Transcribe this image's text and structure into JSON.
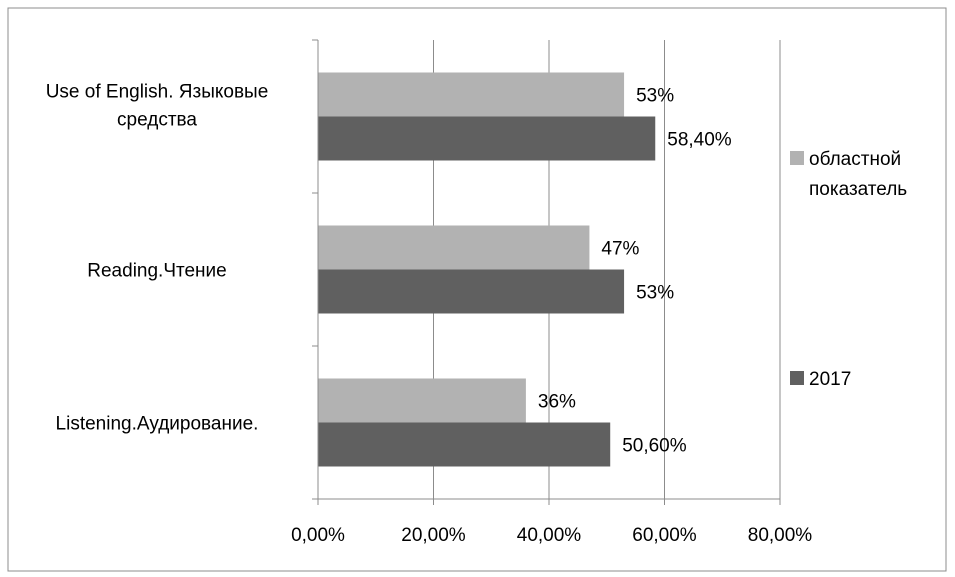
{
  "chart_data": {
    "type": "bar",
    "orientation": "horizontal",
    "categories": [
      "Use of English. Языковые средства",
      "Reading.Чтение",
      "Listening.Аудирование."
    ],
    "category_lines": [
      [
        "Use of English. Языковые",
        "средства"
      ],
      [
        "Reading.Чтение"
      ],
      [
        "Listening.Аудирование."
      ]
    ],
    "series": [
      {
        "name": "областной показатель",
        "legend_lines": [
          "областной",
          "показатель"
        ],
        "values": [
          53,
          47,
          36
        ],
        "labels": [
          "53%",
          "47%",
          "36%"
        ],
        "color": "#b2b2b2"
      },
      {
        "name": "2017",
        "legend_lines": [
          "2017"
        ],
        "values": [
          58.4,
          53,
          50.6
        ],
        "labels": [
          "58,40%",
          "53%",
          "50,60%"
        ],
        "color": "#606060"
      }
    ],
    "xlim": [
      0,
      80
    ],
    "xticks": [
      0,
      20,
      40,
      60,
      80
    ],
    "xtick_labels": [
      "0,00%",
      "20,00%",
      "40,00%",
      "60,00%",
      "80,00%"
    ],
    "grid": true,
    "legend_position": "right",
    "title": "",
    "xlabel": "",
    "ylabel": ""
  }
}
